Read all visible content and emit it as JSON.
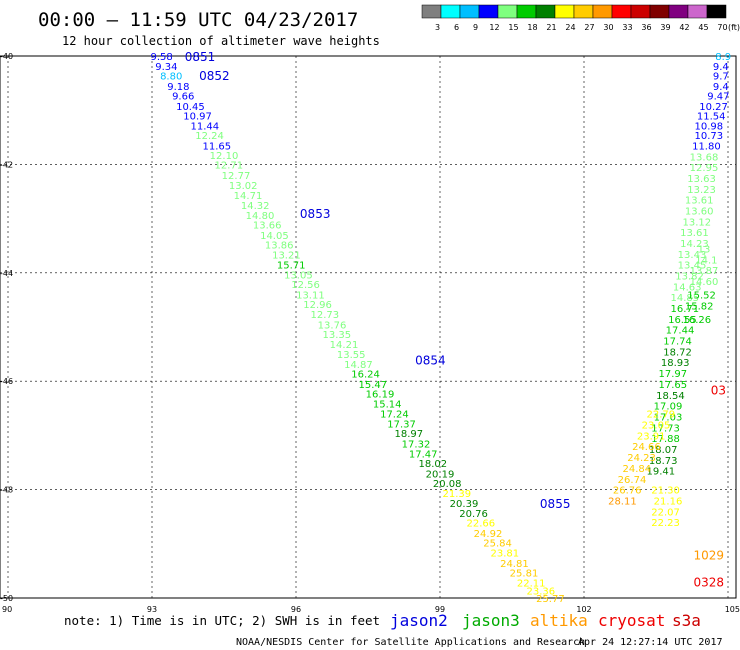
{
  "header": {
    "title": "00:00 – 11:59 UTC 04/23/2017",
    "subtitle": "12 hour collection of altimeter wave heights"
  },
  "color_scale": {
    "unit": "(ft)",
    "bins": [
      {
        "label": "3",
        "color": "#7f7f7f"
      },
      {
        "label": "6",
        "color": "#00ffff"
      },
      {
        "label": "9",
        "color": "#00bfff"
      },
      {
        "label": "12",
        "color": "#0000ff"
      },
      {
        "label": "15",
        "color": "#7fff7f"
      },
      {
        "label": "18",
        "color": "#00cc00"
      },
      {
        "label": "21",
        "color": "#008000"
      },
      {
        "label": "24",
        "color": "#ffff00"
      },
      {
        "label": "27",
        "color": "#ffcc00"
      },
      {
        "label": "30",
        "color": "#ff9900"
      },
      {
        "label": "33",
        "color": "#ff0000"
      },
      {
        "label": "36",
        "color": "#cc0000"
      },
      {
        "label": "39",
        "color": "#800000"
      },
      {
        "label": "42",
        "color": "#800080"
      },
      {
        "label": "45",
        "color": "#cc66cc"
      },
      {
        "label": "70",
        "color": "#000000"
      }
    ]
  },
  "footer": {
    "note": "note: 1) Time is in UTC; 2) SWH is in feet",
    "satellites": [
      {
        "name": "jason2",
        "color": "#0000dd"
      },
      {
        "name": "jason3",
        "color": "#00aa00"
      },
      {
        "name": "altika",
        "color": "#ff9900"
      },
      {
        "name": "cryosat",
        "color": "#ee0000"
      },
      {
        "name": "s3a",
        "color": "#cc0000"
      }
    ],
    "credit": "NOAA/NESDIS Center for Satellite Applications and Research",
    "timestamp": "Apr 24 12:27:14 UTC 2017"
  },
  "chart_data": {
    "type": "scatter",
    "title": "00:00 – 11:59 UTC 04/23/2017",
    "subtitle": "12 hour collection of altimeter wave heights",
    "xlim": [
      90,
      105
    ],
    "ylim": [
      -50,
      -40
    ],
    "x_ticks": [
      "90",
      "93",
      "96",
      "99",
      "102",
      "105"
    ],
    "y_ticks": [
      "-40",
      "-42",
      "-44",
      "-46",
      "-48",
      "-50"
    ],
    "grid": true,
    "passes": [
      {
        "label": "0851",
        "x": 94.0,
        "y": -40.0,
        "satellite": "jason2"
      },
      {
        "label": "0852",
        "x": 94.3,
        "y": -40.35,
        "satellite": "jason2"
      },
      {
        "label": "0853",
        "x": 96.4,
        "y": -42.9,
        "satellite": "jason2"
      },
      {
        "label": "0854",
        "x": 98.8,
        "y": -45.6,
        "satellite": "jason2"
      },
      {
        "label": "0855",
        "x": 101.4,
        "y": -48.25,
        "satellite": "jason2"
      },
      {
        "label": "1029",
        "x": 104.6,
        "y": -49.2,
        "satellite": "altika"
      },
      {
        "label": "0328",
        "x": 104.6,
        "y": -49.7,
        "satellite": "cryosat"
      },
      {
        "label": "03",
        "x": 104.8,
        "y": -46.15,
        "satellite": "cryosat"
      }
    ],
    "series": [
      {
        "name": "jason2 track",
        "points": [
          {
            "x": 93.2,
            "y": -40.0,
            "v": "9.58"
          },
          {
            "x": 93.3,
            "y": -40.18,
            "v": "9.34"
          },
          {
            "x": 93.4,
            "y": -40.36,
            "v": "8.80"
          },
          {
            "x": 93.55,
            "y": -40.55,
            "v": "9.18"
          },
          {
            "x": 93.65,
            "y": -40.73,
            "v": "9.66"
          },
          {
            "x": 93.8,
            "y": -40.92,
            "v": "10.45"
          },
          {
            "x": 93.95,
            "y": -41.1,
            "v": "10.97"
          },
          {
            "x": 94.1,
            "y": -41.28,
            "v": "11.44"
          },
          {
            "x": 94.2,
            "y": -41.46,
            "v": "12.24"
          },
          {
            "x": 94.35,
            "y": -41.65,
            "v": "11.65"
          },
          {
            "x": 94.5,
            "y": -41.83,
            "v": "12.10"
          },
          {
            "x": 94.6,
            "y": -42.0,
            "v": "12.71"
          },
          {
            "x": 94.75,
            "y": -42.2,
            "v": "12.77"
          },
          {
            "x": 94.9,
            "y": -42.38,
            "v": "13.02"
          },
          {
            "x": 95.0,
            "y": -42.56,
            "v": "14.71"
          },
          {
            "x": 95.15,
            "y": -42.75,
            "v": "14.32"
          },
          {
            "x": 95.25,
            "y": -42.93,
            "v": "14.80"
          },
          {
            "x": 95.4,
            "y": -43.11,
            "v": "13.66"
          },
          {
            "x": 95.55,
            "y": -43.3,
            "v": "14.05"
          },
          {
            "x": 95.65,
            "y": -43.48,
            "v": "13.86"
          },
          {
            "x": 95.8,
            "y": -43.66,
            "v": "13.21"
          },
          {
            "x": 95.9,
            "y": -43.85,
            "v": "15.71"
          },
          {
            "x": 96.05,
            "y": -44.03,
            "v": "13.05"
          },
          {
            "x": 96.2,
            "y": -44.21,
            "v": "12.56"
          },
          {
            "x": 96.3,
            "y": -44.4,
            "v": "13.11"
          },
          {
            "x": 96.45,
            "y": -44.58,
            "v": "12.96"
          },
          {
            "x": 96.6,
            "y": -44.76,
            "v": "12.73"
          },
          {
            "x": 96.75,
            "y": -44.95,
            "v": "13.76"
          },
          {
            "x": 96.85,
            "y": -45.13,
            "v": "13.35"
          },
          {
            "x": 97.0,
            "y": -45.31,
            "v": "14.21"
          },
          {
            "x": 97.15,
            "y": -45.5,
            "v": "13.55"
          },
          {
            "x": 97.3,
            "y": -45.68,
            "v": "14.87"
          },
          {
            "x": 97.45,
            "y": -45.86,
            "v": "16.24"
          },
          {
            "x": 97.6,
            "y": -46.05,
            "v": "15.47"
          },
          {
            "x": 97.75,
            "y": -46.23,
            "v": "16.19"
          },
          {
            "x": 97.9,
            "y": -46.41,
            "v": "15.14"
          },
          {
            "x": 98.05,
            "y": -46.6,
            "v": "17.24"
          },
          {
            "x": 98.2,
            "y": -46.78,
            "v": "17.37"
          },
          {
            "x": 98.35,
            "y": -46.96,
            "v": "18.97"
          },
          {
            "x": 98.5,
            "y": -47.15,
            "v": "17.32"
          },
          {
            "x": 98.65,
            "y": -47.33,
            "v": "17.47"
          },
          {
            "x": 98.85,
            "y": -47.51,
            "v": "18.02"
          },
          {
            "x": 99.0,
            "y": -47.7,
            "v": "20.19"
          },
          {
            "x": 99.15,
            "y": -47.88,
            "v": "20.08"
          },
          {
            "x": 99.35,
            "y": -48.06,
            "v": "21.39"
          },
          {
            "x": 99.5,
            "y": -48.25,
            "v": "20.39"
          },
          {
            "x": 99.7,
            "y": -48.43,
            "v": "20.76"
          },
          {
            "x": 99.85,
            "y": -48.61,
            "v": "22.66"
          },
          {
            "x": 100.0,
            "y": -48.8,
            "v": "24.92"
          },
          {
            "x": 100.2,
            "y": -48.98,
            "v": "25.84"
          },
          {
            "x": 100.35,
            "y": -49.16,
            "v": "23.81"
          },
          {
            "x": 100.55,
            "y": -49.35,
            "v": "24.81"
          },
          {
            "x": 100.75,
            "y": -49.53,
            "v": "25.81"
          },
          {
            "x": 100.9,
            "y": -49.71,
            "v": "22.11"
          },
          {
            "x": 101.1,
            "y": -49.86,
            "v": "23.36"
          },
          {
            "x": 101.3,
            "y": -50.0,
            "v": "25.77"
          }
        ]
      },
      {
        "name": "east track",
        "points": [
          {
            "x": 104.9,
            "y": -40.0,
            "v": "8.9"
          },
          {
            "x": 104.85,
            "y": -40.18,
            "v": "9.4"
          },
          {
            "x": 104.85,
            "y": -40.36,
            "v": "9.7"
          },
          {
            "x": 104.85,
            "y": -40.55,
            "v": "9.4"
          },
          {
            "x": 104.8,
            "y": -40.73,
            "v": "9.47"
          },
          {
            "x": 104.7,
            "y": -40.92,
            "v": "10.27"
          },
          {
            "x": 104.65,
            "y": -41.1,
            "v": "11.54"
          },
          {
            "x": 104.6,
            "y": -41.28,
            "v": "10.98"
          },
          {
            "x": 104.6,
            "y": -41.46,
            "v": "10.73"
          },
          {
            "x": 104.55,
            "y": -41.65,
            "v": "11.80"
          },
          {
            "x": 104.5,
            "y": -41.85,
            "v": "13.68"
          },
          {
            "x": 104.5,
            "y": -42.05,
            "v": "12.95"
          },
          {
            "x": 104.45,
            "y": -42.25,
            "v": "13.63"
          },
          {
            "x": 104.45,
            "y": -42.45,
            "v": "13.23"
          },
          {
            "x": 104.4,
            "y": -42.65,
            "v": "13.61"
          },
          {
            "x": 104.4,
            "y": -42.85,
            "v": "13.60"
          },
          {
            "x": 104.35,
            "y": -43.05,
            "v": "13.12"
          },
          {
            "x": 104.3,
            "y": -43.25,
            "v": "13.61"
          },
          {
            "x": 104.3,
            "y": -43.45,
            "v": "14.23"
          },
          {
            "x": 104.25,
            "y": -43.65,
            "v": "13.43"
          },
          {
            "x": 104.25,
            "y": -43.85,
            "v": "13.45"
          },
          {
            "x": 104.2,
            "y": -44.05,
            "v": "13.82"
          },
          {
            "x": 104.15,
            "y": -44.25,
            "v": "14.63"
          },
          {
            "x": 104.1,
            "y": -44.45,
            "v": "14.85"
          },
          {
            "x": 104.1,
            "y": -44.65,
            "v": "16.71"
          },
          {
            "x": 104.05,
            "y": -44.85,
            "v": "16.55"
          },
          {
            "x": 104.0,
            "y": -45.05,
            "v": "17.44"
          },
          {
            "x": 103.95,
            "y": -45.25,
            "v": "17.74"
          },
          {
            "x": 103.95,
            "y": -45.45,
            "v": "18.72"
          },
          {
            "x": 103.9,
            "y": -45.65,
            "v": "18.93"
          },
          {
            "x": 103.85,
            "y": -45.85,
            "v": "17.97"
          },
          {
            "x": 103.85,
            "y": -46.05,
            "v": "17.65"
          },
          {
            "x": 103.8,
            "y": -46.25,
            "v": "18.54"
          },
          {
            "x": 103.75,
            "y": -46.45,
            "v": "17.09"
          },
          {
            "x": 103.75,
            "y": -46.65,
            "v": "17.03"
          },
          {
            "x": 103.7,
            "y": -46.85,
            "v": "17.73"
          },
          {
            "x": 103.7,
            "y": -47.05,
            "v": "17.88"
          },
          {
            "x": 103.65,
            "y": -47.25,
            "v": "18.07"
          },
          {
            "x": 103.65,
            "y": -47.45,
            "v": "18.73"
          },
          {
            "x": 103.6,
            "y": -47.65,
            "v": "19.41"
          }
        ]
      },
      {
        "name": "altika track",
        "points": [
          {
            "x": 104.5,
            "y": -43.55,
            "v": "13"
          },
          {
            "x": 104.55,
            "y": -43.75,
            "v": "14.1"
          },
          {
            "x": 104.5,
            "y": -43.95,
            "v": "13.87"
          },
          {
            "x": 104.5,
            "y": -44.15,
            "v": "14.60"
          },
          {
            "x": 104.45,
            "y": -44.4,
            "v": "15.52"
          },
          {
            "x": 104.4,
            "y": -44.6,
            "v": "15.82"
          },
          {
            "x": 104.35,
            "y": -44.85,
            "v": "16.26"
          },
          {
            "x": 103.6,
            "y": -46.6,
            "v": "22.79"
          },
          {
            "x": 103.5,
            "y": -46.8,
            "v": "23.05"
          },
          {
            "x": 103.4,
            "y": -47.0,
            "v": "23.91"
          },
          {
            "x": 103.3,
            "y": -47.2,
            "v": "24.66"
          },
          {
            "x": 103.2,
            "y": -47.4,
            "v": "24.23"
          },
          {
            "x": 103.1,
            "y": -47.6,
            "v": "24.84"
          },
          {
            "x": 103.0,
            "y": -47.8,
            "v": "26.74"
          },
          {
            "x": 102.9,
            "y": -48.0,
            "v": "26.76"
          },
          {
            "x": 102.8,
            "y": -48.2,
            "v": "28.11"
          },
          {
            "x": 103.7,
            "y": -48.0,
            "v": "21.30"
          },
          {
            "x": 103.75,
            "y": -48.2,
            "v": "21.16"
          },
          {
            "x": 103.7,
            "y": -48.4,
            "v": "22.07"
          },
          {
            "x": 103.7,
            "y": -48.6,
            "v": "22.23"
          }
        ]
      }
    ]
  }
}
